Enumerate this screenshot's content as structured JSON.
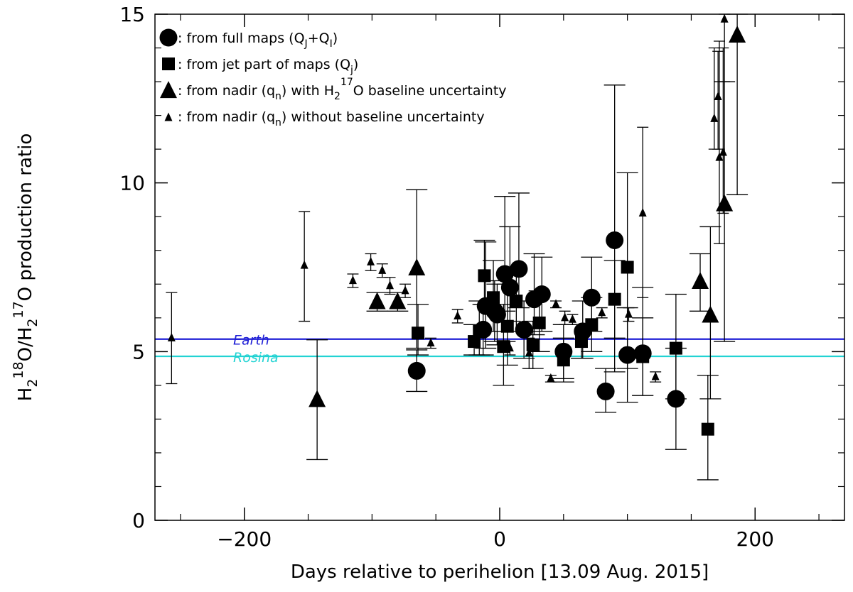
{
  "chart_data": {
    "type": "scatter",
    "xlabel": "Days relative to perihelion [13.09 Aug. 2015]",
    "ylabel": "H2 18O/H2 17O production ratio",
    "xlim": [
      -270,
      270
    ],
    "ylim": [
      0,
      15
    ],
    "x_ticks": [
      -200,
      0,
      200
    ],
    "x_tick_labels": [
      "−200",
      "0",
      "200"
    ],
    "y_ticks": [
      0,
      5,
      10,
      15
    ],
    "y_tick_labels": [
      "0",
      "5",
      "10",
      "15"
    ],
    "legend_position": "top-left",
    "legend": [
      {
        "marker": "circle",
        "text": ": from full maps (Q",
        "sub1": "J",
        "mid": "+Q",
        "sub2": "I",
        "tail": ")"
      },
      {
        "marker": "square",
        "text": ": from jet part of maps (Q",
        "sub1": "j",
        "mid": "",
        "sub2": "",
        "tail": ")"
      },
      {
        "marker": "triangle",
        "text": ": from nadir (q",
        "sub1": "n",
        "mid": ") with H",
        "sub2": "2",
        "sup": "17",
        "tail": "O baseline uncertainty"
      },
      {
        "marker": "small-triangle",
        "text": ": from nadir (q",
        "sub1": "n",
        "mid": ") without baseline uncertainty",
        "sub2": "",
        "tail": ""
      }
    ],
    "reference_lines": [
      {
        "name": "Earth",
        "y": 5.37,
        "color": "#1f1fd6"
      },
      {
        "name": "Rosina",
        "y": 4.86,
        "color": "#22d3d3"
      }
    ],
    "series": [
      {
        "name": "from full maps (QJ+QI)",
        "marker": "circle",
        "points": [
          {
            "x": -65,
            "y": 4.43,
            "ylo": 3.82,
            "yhi": 5.05
          },
          {
            "x": -13,
            "y": 5.65,
            "ylo": 4.9,
            "yhi": 6.4
          },
          {
            "x": -11,
            "y": 6.35,
            "ylo": 5.1,
            "yhi": 8.25
          },
          {
            "x": -4,
            "y": 6.2,
            "ylo": 5.3,
            "yhi": 7.1
          },
          {
            "x": -2,
            "y": 6.1,
            "ylo": 5.2,
            "yhi": 7.0
          },
          {
            "x": 4,
            "y": 7.3,
            "ylo": 6.2,
            "yhi": 9.6
          },
          {
            "x": 8,
            "y": 6.9,
            "ylo": 5.9,
            "yhi": 8.7
          },
          {
            "x": 15,
            "y": 7.45,
            "ylo": 6.3,
            "yhi": 9.7
          },
          {
            "x": 19,
            "y": 5.65,
            "ylo": 4.8,
            "yhi": 6.5
          },
          {
            "x": 27,
            "y": 6.55,
            "ylo": 5.5,
            "yhi": 7.9
          },
          {
            "x": 33,
            "y": 6.7,
            "ylo": 5.6,
            "yhi": 7.8
          },
          {
            "x": 50,
            "y": 5.0,
            "ylo": 4.2,
            "yhi": 5.8
          },
          {
            "x": 65,
            "y": 5.6,
            "ylo": 4.8,
            "yhi": 6.5
          },
          {
            "x": 72,
            "y": 6.6,
            "ylo": 5.6,
            "yhi": 7.8
          },
          {
            "x": 83,
            "y": 3.82,
            "ylo": 3.2,
            "yhi": 4.5
          },
          {
            "x": 90,
            "y": 8.3,
            "ylo": 4.4,
            "yhi": 12.9
          },
          {
            "x": 100,
            "y": 4.9,
            "ylo": 3.5,
            "yhi": 6.3
          },
          {
            "x": 112,
            "y": 4.95,
            "ylo": 3.7,
            "yhi": 6.9
          },
          {
            "x": 138,
            "y": 3.6,
            "ylo": 2.1,
            "yhi": 5.1
          }
        ]
      },
      {
        "name": "from jet part of maps (Qj)",
        "marker": "square",
        "points": [
          {
            "x": -64,
            "y": 5.55,
            "ylo": 4.9,
            "yhi": 6.4
          },
          {
            "x": -20,
            "y": 5.3,
            "ylo": 4.9,
            "yhi": 5.8
          },
          {
            "x": -16,
            "y": 5.6,
            "ylo": 4.9,
            "yhi": 6.5
          },
          {
            "x": -12,
            "y": 7.25,
            "ylo": 6.4,
            "yhi": 8.3
          },
          {
            "x": -5,
            "y": 6.6,
            "ylo": 5.6,
            "yhi": 7.7
          },
          {
            "x": 3,
            "y": 5.15,
            "ylo": 4.0,
            "yhi": 6.4
          },
          {
            "x": 6,
            "y": 5.75,
            "ylo": 4.6,
            "yhi": 7.0
          },
          {
            "x": 13,
            "y": 6.5,
            "ylo": 5.6,
            "yhi": 7.4
          },
          {
            "x": 26,
            "y": 5.2,
            "ylo": 4.5,
            "yhi": 5.9
          },
          {
            "x": 31,
            "y": 5.85,
            "ylo": 5.0,
            "yhi": 6.8
          },
          {
            "x": 50,
            "y": 4.75,
            "ylo": 4.1,
            "yhi": 5.4
          },
          {
            "x": 64,
            "y": 5.3,
            "ylo": 4.8,
            "yhi": 5.8
          },
          {
            "x": 72,
            "y": 5.8,
            "ylo": 5.0,
            "yhi": 6.6
          },
          {
            "x": 90,
            "y": 6.55,
            "ylo": 5.4,
            "yhi": 7.7
          },
          {
            "x": 100,
            "y": 7.5,
            "ylo": 4.5,
            "yhi": 10.3
          },
          {
            "x": 112,
            "y": 4.85,
            "ylo": 3.7,
            "yhi": 6.0
          },
          {
            "x": 138,
            "y": 5.1,
            "ylo": 3.6,
            "yhi": 6.7
          },
          {
            "x": 163,
            "y": 2.7,
            "ylo": 1.2,
            "yhi": 4.3
          }
        ]
      },
      {
        "name": "from nadir (qn) with H2 17O baseline uncertainty",
        "marker": "triangle",
        "points": [
          {
            "x": -143,
            "y": 3.55,
            "ylo": 1.8,
            "yhi": 5.35
          },
          {
            "x": -96,
            "y": 6.45,
            "ylo": 6.2,
            "yhi": 6.75
          },
          {
            "x": -80,
            "y": 6.45,
            "ylo": 6.2,
            "yhi": 6.75
          },
          {
            "x": -65,
            "y": 7.45,
            "ylo": 5.1,
            "yhi": 9.8
          },
          {
            "x": 157,
            "y": 7.05,
            "ylo": 6.2,
            "yhi": 7.9
          },
          {
            "x": 165,
            "y": 6.05,
            "ylo": 3.6,
            "yhi": 8.7
          },
          {
            "x": 176,
            "y": 9.35,
            "ylo": 5.3,
            "yhi": 13.0
          },
          {
            "x": 186,
            "y": 14.35,
            "ylo": 9.65,
            "yhi": 15.0
          }
        ]
      },
      {
        "name": "from nadir (qn) without baseline uncertainty",
        "marker": "small-triangle",
        "points": [
          {
            "x": -257,
            "y": 5.4,
            "ylo": 4.05,
            "yhi": 6.75
          },
          {
            "x": -153,
            "y": 7.55,
            "ylo": 5.9,
            "yhi": 9.15
          },
          {
            "x": -115,
            "y": 7.1,
            "ylo": 6.9,
            "yhi": 7.3
          },
          {
            "x": -101,
            "y": 7.65,
            "ylo": 7.4,
            "yhi": 7.9
          },
          {
            "x": -92,
            "y": 7.4,
            "ylo": 7.2,
            "yhi": 7.6
          },
          {
            "x": -86,
            "y": 6.95,
            "ylo": 6.7,
            "yhi": 7.2
          },
          {
            "x": -74,
            "y": 6.8,
            "ylo": 6.6,
            "yhi": 7.0
          },
          {
            "x": -54,
            "y": 5.25,
            "ylo": 5.1,
            "yhi": 5.4
          },
          {
            "x": -33,
            "y": 6.05,
            "ylo": 5.85,
            "yhi": 6.25
          },
          {
            "x": 8,
            "y": 5.1,
            "ylo": 4.9,
            "yhi": 5.3
          },
          {
            "x": 23,
            "y": 4.95,
            "ylo": 4.5,
            "yhi": 5.4
          },
          {
            "x": 40,
            "y": 4.2,
            "ylo": 4.1,
            "yhi": 4.3
          },
          {
            "x": 44,
            "y": 6.4,
            "ylo": 6.3,
            "yhi": 6.5
          },
          {
            "x": 51,
            "y": 6.0,
            "ylo": 5.8,
            "yhi": 6.2
          },
          {
            "x": 57,
            "y": 5.95,
            "ylo": 5.8,
            "yhi": 6.1
          },
          {
            "x": 80,
            "y": 6.15,
            "ylo": 6.0,
            "yhi": 6.3
          },
          {
            "x": 101,
            "y": 6.1,
            "ylo": 5.9,
            "yhi": 6.3
          },
          {
            "x": 112,
            "y": 9.1,
            "ylo": 6.6,
            "yhi": 11.65
          },
          {
            "x": 122,
            "y": 4.25,
            "ylo": 4.1,
            "yhi": 4.4
          },
          {
            "x": 168,
            "y": 11.9,
            "ylo": 11.0,
            "yhi": 14.0
          },
          {
            "x": 171,
            "y": 12.55,
            "ylo": 11.0,
            "yhi": 13.9
          },
          {
            "x": 172,
            "y": 10.75,
            "ylo": 8.2,
            "yhi": 14.2
          },
          {
            "x": 175,
            "y": 10.9,
            "ylo": 9.1,
            "yhi": 14.0
          },
          {
            "x": 176,
            "y": 14.85,
            "ylo": 13.0,
            "yhi": 15.0
          }
        ]
      }
    ]
  }
}
